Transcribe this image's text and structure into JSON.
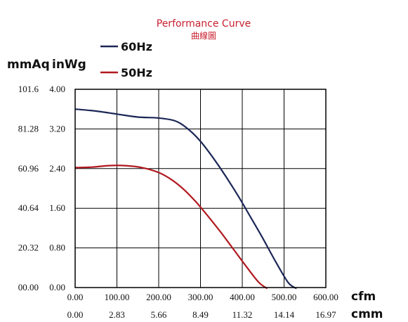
{
  "colors": {
    "series_60hz": "#1c2757",
    "series_50hz": "#b0191f"
  },
  "chart_data": {
    "type": "line",
    "title": "Performance Curve",
    "subtitle": "曲線圖",
    "y_units": [
      "mmAq",
      "inWg"
    ],
    "x_units": [
      "cfm",
      "cmm"
    ],
    "xlim": [
      0,
      600
    ],
    "ylim": [
      0,
      4
    ],
    "grid": true,
    "legend_position": "top-left",
    "x_ticks_cfm": [
      "0.00",
      "100.00",
      "200.00",
      "300.00",
      "400.00",
      "500.00",
      "600.00"
    ],
    "x_ticks_cmm": [
      "0.00",
      "2.83",
      "5.66",
      "8.49",
      "11.32",
      "14.14",
      "16.97"
    ],
    "y_ticks_inwg": [
      "0.00",
      "0.80",
      "1.60",
      "2.40",
      "3.20",
      "4.00"
    ],
    "y_ticks_mmaq": [
      "00.00",
      "20.32",
      "40.64",
      "60.96",
      "81.28",
      "101.6"
    ],
    "series": [
      {
        "name": "60Hz",
        "color": "#1c2757",
        "x": [
          0,
          50,
          100,
          150,
          200,
          240,
          270,
          300,
          330,
          360,
          390,
          420,
          450,
          480,
          510,
          530
        ],
        "y": [
          3.6,
          3.56,
          3.5,
          3.44,
          3.42,
          3.36,
          3.2,
          2.95,
          2.62,
          2.25,
          1.85,
          1.42,
          0.98,
          0.52,
          0.1,
          -0.02
        ]
      },
      {
        "name": "50Hz",
        "color": "#b0191f",
        "x": [
          0,
          40,
          80,
          120,
          160,
          200,
          230,
          260,
          290,
          320,
          350,
          380,
          410,
          440,
          460
        ],
        "y": [
          2.42,
          2.43,
          2.46,
          2.46,
          2.42,
          2.32,
          2.18,
          1.98,
          1.72,
          1.42,
          1.1,
          0.76,
          0.42,
          0.1,
          -0.02
        ]
      }
    ]
  }
}
